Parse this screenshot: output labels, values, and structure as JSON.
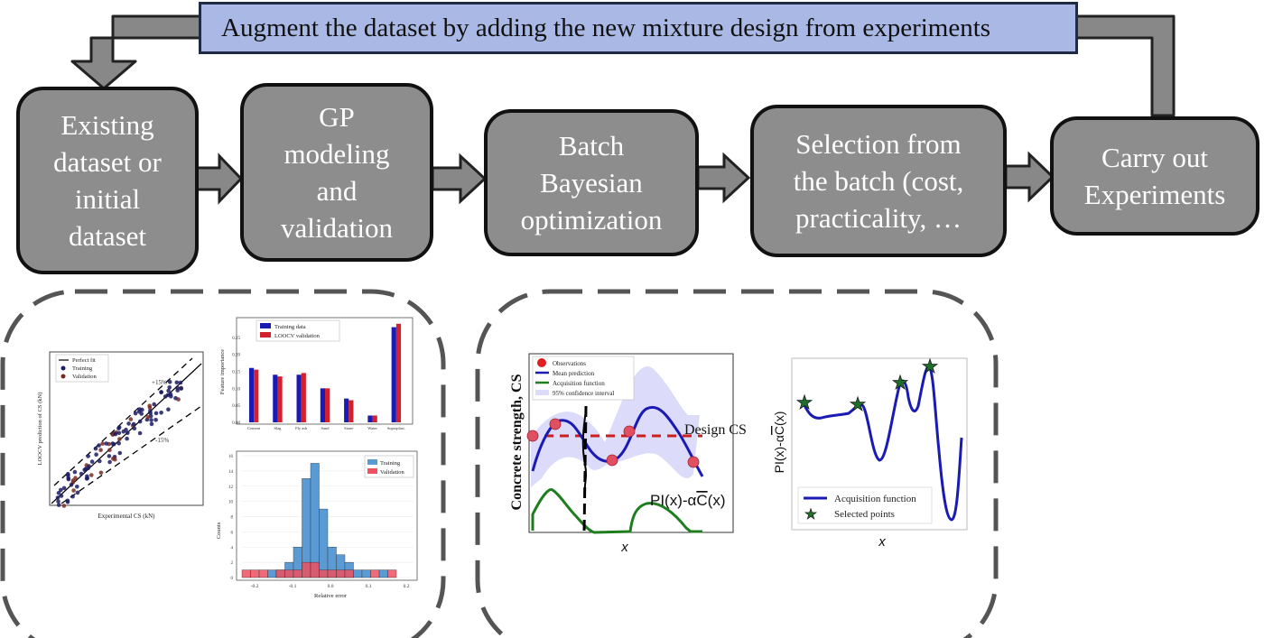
{
  "banner": {
    "text": "Augment the dataset by adding the new mixture design from experiments"
  },
  "steps": [
    {
      "label": "Existing\ndataset or\ninitial\ndataset"
    },
    {
      "label": "GP\nmodeling\nand\nvalidation"
    },
    {
      "label": "Batch\nBayesian\noptimization"
    },
    {
      "label": "Selection from\nthe batch (cost,\npracticality, …"
    },
    {
      "label": "Carry out\nExperiments"
    }
  ],
  "colors": {
    "banner_fill": "#a9b8e4",
    "node_fill": "#8d8d8d",
    "arrow_fill": "#888888",
    "series_blue": "#1a1ab4",
    "series_red": "#d4202a",
    "series_green": "#1e7d1e",
    "histogram_blue": "#5b9bd5"
  },
  "panel_left": {
    "scatter": {
      "legend": [
        "Perfect fit",
        "Training",
        "Validation"
      ],
      "band_upper": "+15%",
      "band_lower": "-15%",
      "xlabel": "Experimental CS (kN)",
      "ylabel": "LOOCV prediction of CS (kN)"
    },
    "bars": {
      "legend": [
        "Training data",
        "LOOCV validation"
      ],
      "ylabel": "Feature importance",
      "yticks": [
        "0.25",
        "0.20",
        "0.15",
        "0.10",
        "0.05",
        "0.00"
      ],
      "categories": [
        "Cement",
        "Slag",
        "Fly ash",
        "Sand",
        "Stone",
        "Water",
        "Superplast."
      ],
      "chart_data": {
        "type": "bar",
        "categories": [
          "Cement",
          "Slag",
          "Fly ash",
          "Sand",
          "Stone",
          "Water",
          "Superplast."
        ],
        "series": [
          {
            "name": "Training data",
            "values": [
              0.16,
              0.14,
              0.14,
              0.1,
              0.07,
              0.02,
              0.28
            ]
          },
          {
            "name": "LOOCV validation",
            "values": [
              0.155,
              0.135,
              0.145,
              0.1,
              0.065,
              0.02,
              0.29
            ]
          }
        ],
        "ylim": [
          0.0,
          0.3
        ]
      }
    },
    "histogram": {
      "legend": [
        "Training",
        "Validation"
      ],
      "ylabel": "Counts",
      "xlabel": "Relative error",
      "yticks": [
        "16",
        "14",
        "12",
        "10",
        "8",
        "6",
        "4",
        "2",
        "0"
      ],
      "xticks": [
        "-0.2",
        "-0.1",
        "0.0",
        "0.1",
        "0.2"
      ],
      "chart_data": {
        "type": "bar",
        "bins": [
          "-0.20",
          "-0.18",
          "-0.16",
          "-0.14",
          "-0.12",
          "-0.10",
          "-0.08",
          "-0.06",
          "-0.04",
          "-0.02",
          "0.00",
          "0.02",
          "0.04",
          "0.06",
          "0.08",
          "0.10",
          "0.12",
          "0.14",
          "0.16",
          "0.18"
        ],
        "series": [
          {
            "name": "Training",
            "values": [
              0,
              0,
              0,
              1,
              1,
              2,
              4,
              13,
              15,
              9,
              4,
              3,
              2,
              1,
              1,
              0,
              1,
              0,
              0,
              0
            ]
          },
          {
            "name": "Validation",
            "values": [
              1,
              1,
              1,
              0,
              1,
              1,
              1,
              2,
              2,
              1,
              1,
              1,
              1,
              0,
              0,
              1,
              0,
              1,
              0,
              0
            ]
          }
        ],
        "ylim": [
          0,
          16
        ]
      }
    }
  },
  "panel_right": {
    "gp_plot": {
      "legend": [
        "Observations",
        "Mean prediction",
        "Acquisition function",
        "95% confidence interval"
      ],
      "ylabel": "Concrete strength, CS",
      "xlabel": "x",
      "design_label": "Design CS",
      "acq_label": "PI(x)-α",
      "acq_symbol": "C",
      "acq_arg": "(x)"
    },
    "acq_plot": {
      "legend": [
        "Acquisition function",
        "Selected points"
      ],
      "xlabel": "x",
      "ylabel_prefix": "PI(x)-α",
      "ylabel_symbol": "C",
      "ylabel_arg": "(x)"
    }
  }
}
